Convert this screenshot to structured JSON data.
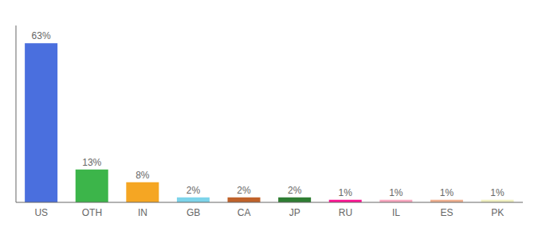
{
  "chart_data": {
    "type": "bar",
    "categories": [
      "US",
      "OTH",
      "IN",
      "GB",
      "CA",
      "JP",
      "RU",
      "IL",
      "ES",
      "PK"
    ],
    "values": [
      63,
      13,
      8,
      2,
      2,
      2,
      1,
      1,
      1,
      1
    ],
    "value_labels": [
      "63%",
      "13%",
      "8%",
      "2%",
      "2%",
      "2%",
      "1%",
      "1%",
      "1%",
      "1%"
    ],
    "colors": [
      "#4a6fde",
      "#3cb54a",
      "#f5a623",
      "#7dd4ea",
      "#c0622a",
      "#2e7d32",
      "#ff1493",
      "#f9a8c0",
      "#f0b090",
      "#f0f0c0"
    ],
    "ylim": [
      0,
      70
    ],
    "grid": false,
    "data_labels": true,
    "tick_labels": "x"
  }
}
